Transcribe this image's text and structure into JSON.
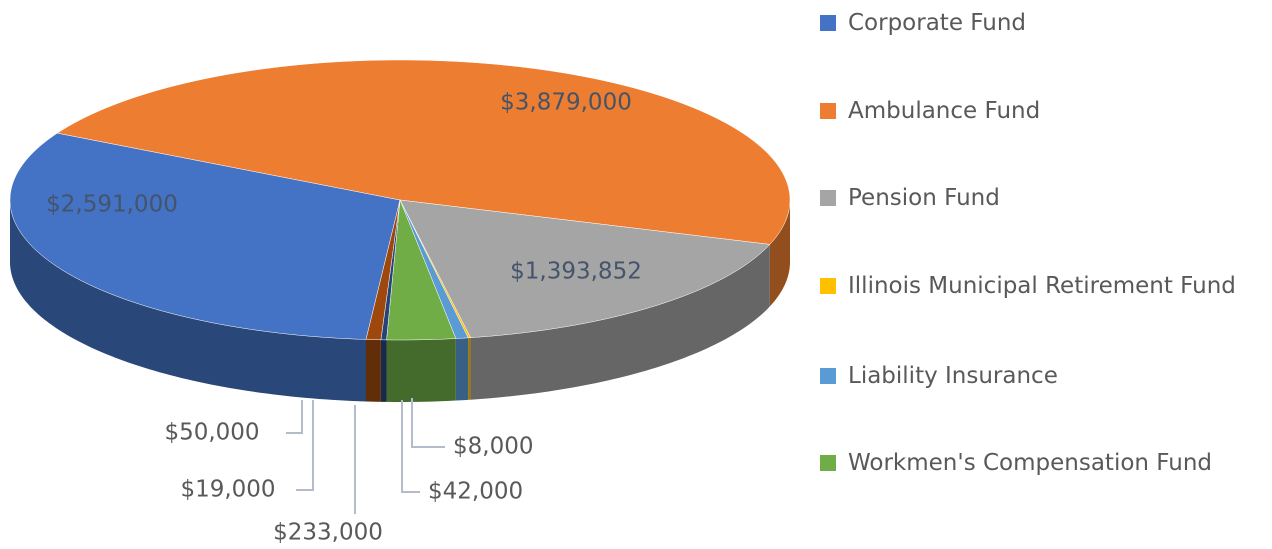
{
  "chart_data": {
    "type": "pie",
    "categories": [
      "Corporate Fund",
      "Ambulance Fund",
      "Pension Fund",
      "Illinois Municipal Retirement Fund",
      "Liability Insurance",
      "Workmen's Compensation Fund",
      null,
      null
    ],
    "values": [
      2591000,
      3879000,
      1393852,
      8000,
      42000,
      233000,
      19000,
      50000
    ],
    "value_labels": [
      "$2,591,000",
      "$3,879,000",
      "$1,393,852",
      "$8,000",
      "$42,000",
      "$233,000",
      "$19,000",
      "$50,000"
    ],
    "colors": [
      "#4472c4",
      "#ed7d31",
      "#a5a5a5",
      "#ffc000",
      "#5b9bd5",
      "#70ad47",
      "#264478",
      "#9e480e"
    ],
    "legend": "right"
  }
}
